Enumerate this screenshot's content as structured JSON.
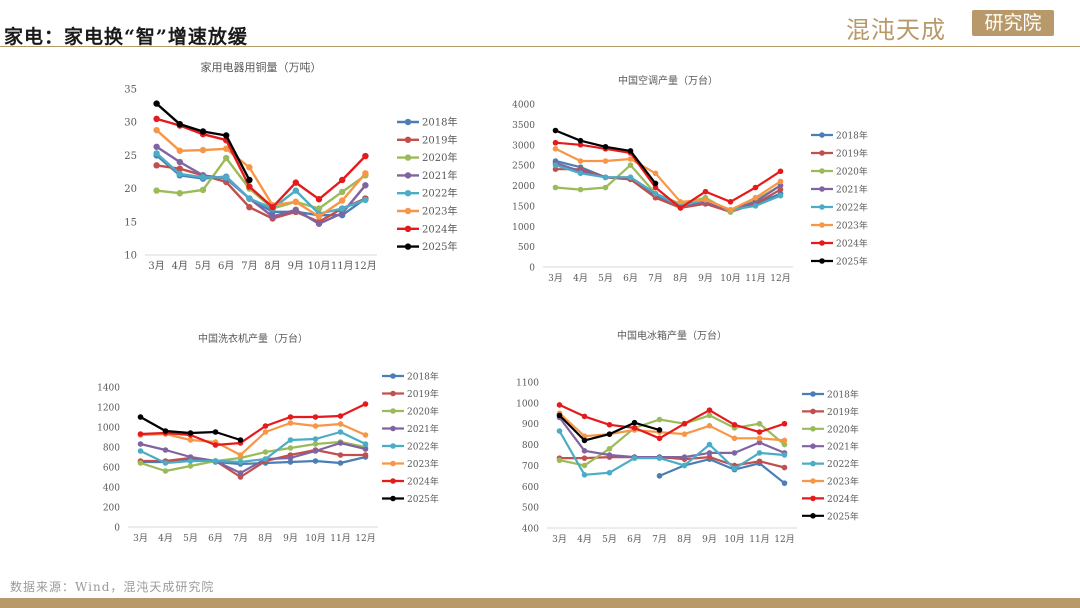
{
  "page": {
    "title": "家电：家电换“智”增速放缓",
    "logo_text": "混沌天成",
    "logo_seal": "研究院",
    "source": "数据来源：Wind，混沌天成研究院",
    "accent_color": "#b89a6a"
  },
  "legend_colors": {
    "2018年": "#4a7eb5",
    "2019年": "#c0504d",
    "2020年": "#9bbb59",
    "2021年": "#8064a2",
    "2022年": "#4bacc6",
    "2023年": "#f79646",
    "2024年": "#e41a1c",
    "2025年": "#000000"
  },
  "chart_data": [
    {
      "type": "line",
      "title": "家用电器用铜量（万吨）",
      "categories": [
        "3月",
        "4月",
        "5月",
        "6月",
        "7月",
        "8月",
        "9月",
        "10月",
        "11月",
        "12月"
      ],
      "ylim": [
        10,
        35
      ],
      "yticks": [
        10,
        15,
        20,
        25,
        30,
        35
      ],
      "grid": false,
      "legend": "right",
      "series": [
        {
          "name": "2018年",
          "values": [
            25.0,
            22.0,
            21.5,
            21.8,
            18.5,
            16.5,
            16.5,
            16.0,
            16.0,
            18.5
          ]
        },
        {
          "name": "2019年",
          "values": [
            23.5,
            23.0,
            22.0,
            21.0,
            17.2,
            15.5,
            16.5,
            15.0,
            17.0,
            18.5
          ]
        },
        {
          "name": "2020年",
          "values": [
            19.7,
            19.3,
            19.8,
            24.6,
            20.0,
            17.0,
            18.0,
            17.0,
            19.5,
            22.0
          ]
        },
        {
          "name": "2021年",
          "values": [
            26.3,
            24.0,
            22.0,
            21.5,
            18.5,
            15.8,
            16.8,
            14.7,
            16.3,
            20.5
          ]
        },
        {
          "name": "2022年",
          "values": [
            25.3,
            22.2,
            21.7,
            21.7,
            18.5,
            17.0,
            19.7,
            16.2,
            17.0,
            18.3
          ]
        },
        {
          "name": "2023年",
          "values": [
            28.8,
            25.7,
            25.8,
            26.0,
            23.2,
            17.5,
            18.0,
            15.8,
            18.2,
            22.3
          ]
        },
        {
          "name": "2024年",
          "values": [
            30.5,
            29.5,
            28.2,
            27.3,
            20.3,
            17.2,
            20.9,
            18.4,
            21.3,
            24.9
          ]
        },
        {
          "name": "2025年",
          "values": [
            32.8,
            29.7,
            28.6,
            28.0,
            21.3,
            null,
            null,
            null,
            null,
            null
          ]
        }
      ]
    },
    {
      "type": "line",
      "title": "中国空调产量（万台）",
      "categories": [
        "3月",
        "4月",
        "5月",
        "6月",
        "7月",
        "8月",
        "9月",
        "10月",
        "11月",
        "12月"
      ],
      "ylim": [
        0,
        4000
      ],
      "yticks": [
        0,
        500,
        1000,
        1500,
        2000,
        2500,
        3000,
        3500,
        4000
      ],
      "grid": false,
      "legend": "right",
      "series": [
        {
          "name": "2018年",
          "values": [
            2600,
            2450,
            2200,
            2150,
            1750,
            1500,
            1550,
            1380,
            1550,
            1800
          ]
        },
        {
          "name": "2019年",
          "values": [
            2400,
            2400,
            2200,
            2150,
            1700,
            1450,
            1550,
            1350,
            1550,
            1900
          ]
        },
        {
          "name": "2020年",
          "values": [
            1950,
            1900,
            1950,
            2500,
            1800,
            1550,
            1700,
            1350,
            1650,
            2000
          ]
        },
        {
          "name": "2021年",
          "values": [
            2550,
            2350,
            2200,
            2200,
            1800,
            1500,
            1600,
            1400,
            1600,
            2000
          ]
        },
        {
          "name": "2022年",
          "values": [
            2500,
            2300,
            2200,
            2200,
            1800,
            1500,
            1650,
            1400,
            1500,
            1750
          ]
        },
        {
          "name": "2023年",
          "values": [
            2900,
            2600,
            2600,
            2650,
            2300,
            1600,
            1650,
            1400,
            1700,
            2100
          ]
        },
        {
          "name": "2024年",
          "values": [
            3050,
            3000,
            2900,
            2800,
            1950,
            1450,
            1850,
            1600,
            1950,
            2350
          ]
        },
        {
          "name": "2025年",
          "values": [
            3350,
            3100,
            2950,
            2850,
            2050,
            null,
            null,
            null,
            null,
            null
          ]
        }
      ]
    },
    {
      "type": "line",
      "title": "中国洗衣机产量（万台）",
      "categories": [
        "3月",
        "4月",
        "5月",
        "6月",
        "7月",
        "8月",
        "9月",
        "10月",
        "11月",
        "12月"
      ],
      "ylim": [
        0,
        1400
      ],
      "yticks": [
        0,
        200,
        400,
        600,
        800,
        1000,
        1200,
        1400
      ],
      "grid": false,
      "legend": "right",
      "series": [
        {
          "name": "2018年",
          "values": [
            650,
            650,
            680,
            650,
            630,
            640,
            650,
            660,
            640,
            700
          ]
        },
        {
          "name": "2019年",
          "values": [
            660,
            660,
            690,
            660,
            500,
            660,
            720,
            770,
            720,
            720
          ]
        },
        {
          "name": "2020年",
          "values": [
            640,
            560,
            610,
            660,
            690,
            750,
            790,
            830,
            850,
            800
          ]
        },
        {
          "name": "2021年",
          "values": [
            830,
            770,
            700,
            660,
            540,
            680,
            690,
            760,
            840,
            780
          ]
        },
        {
          "name": "2022年",
          "values": [
            760,
            640,
            660,
            660,
            650,
            680,
            870,
            880,
            950,
            830
          ]
        },
        {
          "name": "2023年",
          "values": [
            920,
            930,
            870,
            850,
            720,
            950,
            1040,
            1010,
            1030,
            920
          ]
        },
        {
          "name": "2024年",
          "values": [
            930,
            940,
            920,
            820,
            840,
            1010,
            1100,
            1100,
            1110,
            1230
          ]
        },
        {
          "name": "2025年",
          "values": [
            1100,
            960,
            940,
            950,
            870,
            null,
            null,
            null,
            null,
            null
          ]
        }
      ]
    },
    {
      "type": "line",
      "title": "中国电冰箱产量（万台）",
      "categories": [
        "3月",
        "4月",
        "5月",
        "6月",
        "7月",
        "8月",
        "9月",
        "10月",
        "11月",
        "12月"
      ],
      "ylim": [
        400,
        1100
      ],
      "yticks": [
        400,
        500,
        600,
        700,
        800,
        900,
        1000,
        1100
      ],
      "grid": false,
      "legend": "right",
      "series": [
        {
          "name": "2018年",
          "values": [
            null,
            null,
            null,
            null,
            650,
            700,
            730,
            680,
            710,
            615
          ]
        },
        {
          "name": "2019年",
          "values": [
            735,
            735,
            740,
            740,
            740,
            730,
            740,
            700,
            720,
            690
          ]
        },
        {
          "name": "2020年",
          "values": [
            725,
            700,
            780,
            880,
            920,
            900,
            940,
            880,
            900,
            800
          ]
        },
        {
          "name": "2021年",
          "values": [
            930,
            770,
            750,
            740,
            740,
            740,
            760,
            760,
            810,
            760
          ]
        },
        {
          "name": "2022年",
          "values": [
            865,
            655,
            665,
            735,
            735,
            700,
            800,
            685,
            760,
            750
          ]
        },
        {
          "name": "2023年",
          "values": [
            950,
            840,
            850,
            870,
            860,
            850,
            890,
            830,
            830,
            820
          ]
        },
        {
          "name": "2024年",
          "values": [
            990,
            935,
            895,
            880,
            830,
            900,
            965,
            895,
            860,
            900
          ]
        },
        {
          "name": "2025年",
          "values": [
            940,
            820,
            850,
            905,
            870,
            null,
            null,
            null,
            null,
            null
          ]
        }
      ]
    }
  ]
}
